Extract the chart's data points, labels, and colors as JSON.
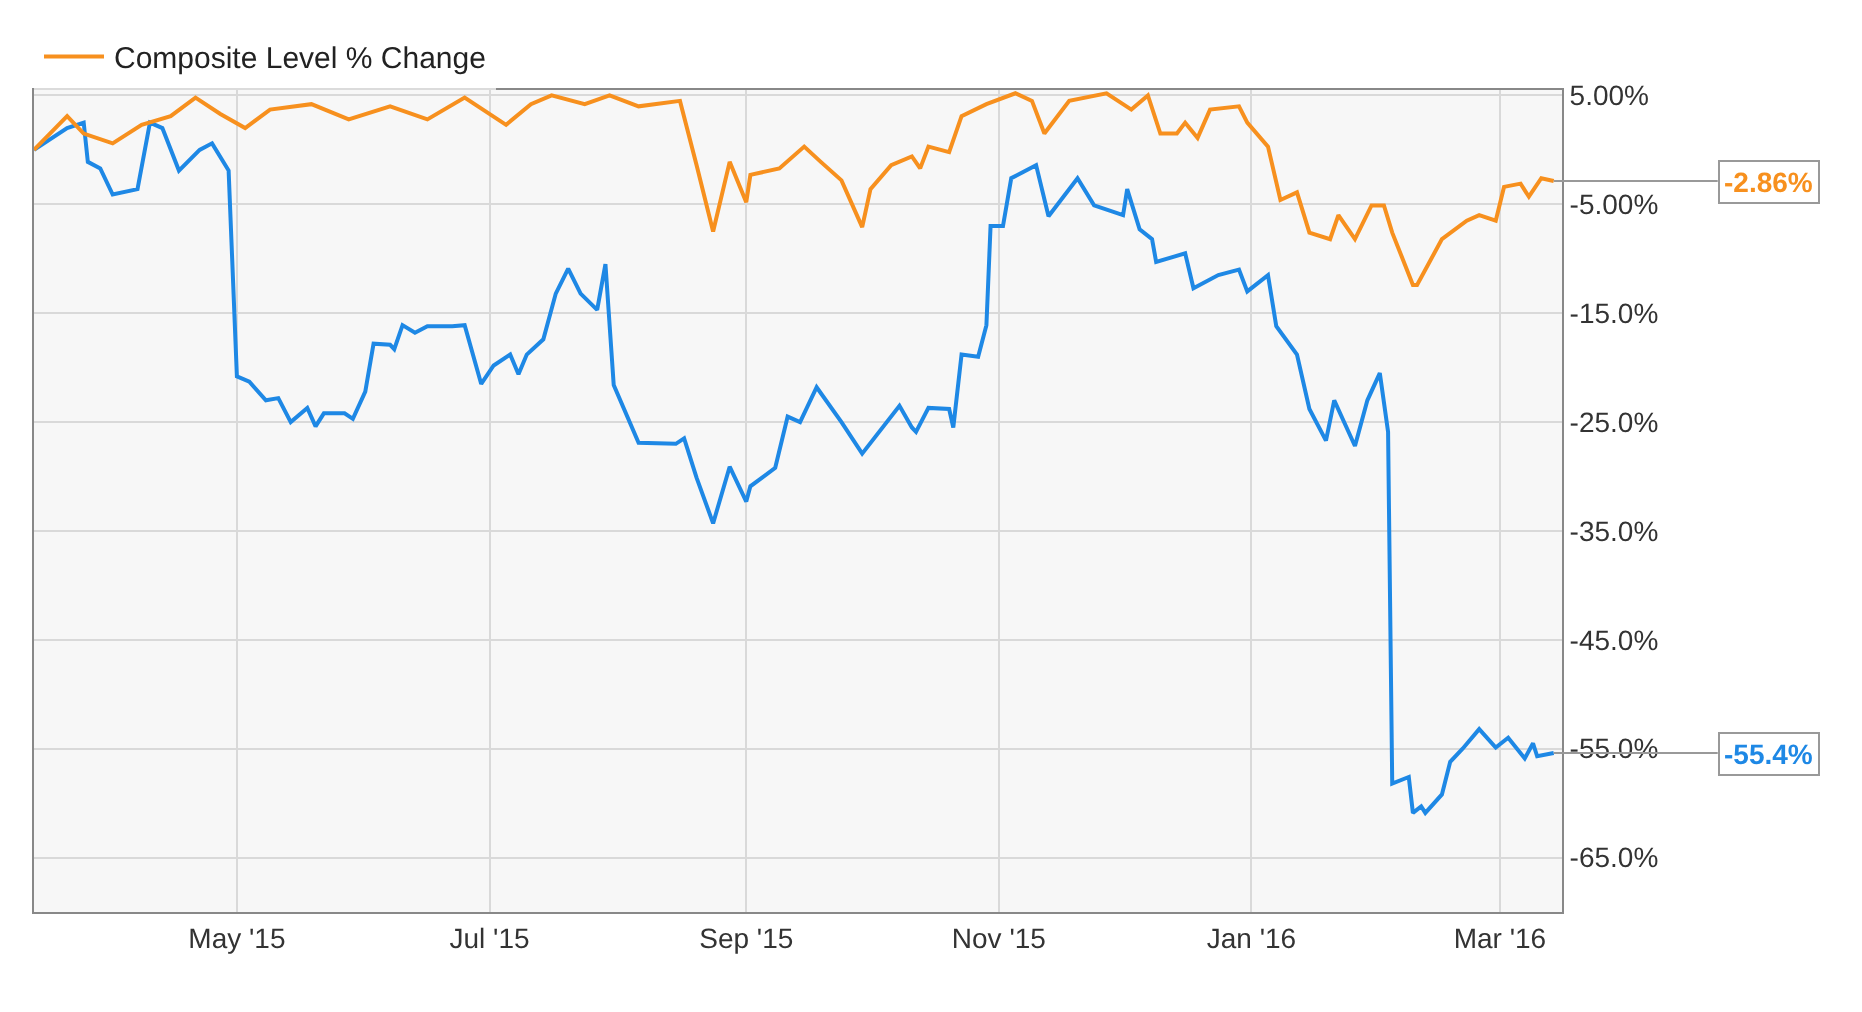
{
  "chart_data": {
    "type": "line",
    "xlim": [
      "2015-03-13",
      "2016-03-16"
    ],
    "xticks": [
      {
        "value": "2015-05-01",
        "label": "May '15"
      },
      {
        "value": "2015-07-01",
        "label": "Jul '15"
      },
      {
        "value": "2015-09-01",
        "label": "Sep '15"
      },
      {
        "value": "2015-11-01",
        "label": "Nov '15"
      },
      {
        "value": "2016-01-01",
        "label": "Jan '16"
      },
      {
        "value": "2016-03-01",
        "label": "Mar '16"
      }
    ],
    "ylim": [
      -70,
      5.5
    ],
    "yticks": [
      {
        "value": 5,
        "label": "5.00%"
      },
      {
        "value": -5,
        "label": "-5.00%"
      },
      {
        "value": -15,
        "label": "-15.0%"
      },
      {
        "value": -25,
        "label": "-25.0%"
      },
      {
        "value": -35,
        "label": "-35.0%"
      },
      {
        "value": -45,
        "label": "-45.0%"
      },
      {
        "value": -55,
        "label": "-55.0%"
      },
      {
        "value": -65,
        "label": "-65.0%"
      }
    ],
    "grid": true,
    "legend": "top left",
    "series": [
      {
        "color": "#1e88e5",
        "x": [
          "2015-03-13",
          "2015-03-21",
          "2015-03-25",
          "2015-03-26",
          "2015-03-29",
          "2015-04-01",
          "2015-04-07",
          "2015-04-10",
          "2015-04-13",
          "2015-04-17",
          "2015-04-22",
          "2015-04-25",
          "2015-04-29",
          "2015-05-01",
          "2015-05-04",
          "2015-05-08",
          "2015-05-11",
          "2015-05-14",
          "2015-05-18",
          "2015-05-20",
          "2015-05-22",
          "2015-05-27",
          "2015-05-29",
          "2015-06-01",
          "2015-06-03",
          "2015-06-07",
          "2015-06-08",
          "2015-06-10",
          "2015-06-13",
          "2015-06-16",
          "2015-06-22",
          "2015-06-25",
          "2015-06-29",
          "2015-07-02",
          "2015-07-06",
          "2015-07-08",
          "2015-07-10",
          "2015-07-14",
          "2015-07-17",
          "2015-07-20",
          "2015-07-23",
          "2015-07-27",
          "2015-07-29",
          "2015-07-31",
          "2015-08-06",
          "2015-08-15",
          "2015-08-17",
          "2015-08-20",
          "2015-08-24",
          "2015-08-28",
          "2015-09-01",
          "2015-09-02",
          "2015-09-08",
          "2015-09-11",
          "2015-09-14",
          "2015-09-18",
          "2015-09-24",
          "2015-09-29",
          "2015-10-08",
          "2015-10-11",
          "2015-10-12",
          "2015-10-15",
          "2015-10-20",
          "2015-10-21",
          "2015-10-23",
          "2015-10-27",
          "2015-10-29",
          "2015-10-30",
          "2015-11-02",
          "2015-11-04",
          "2015-11-10",
          "2015-11-13",
          "2015-11-20",
          "2015-11-24",
          "2015-12-01",
          "2015-12-02",
          "2015-12-05",
          "2015-12-08",
          "2015-12-09",
          "2015-12-16",
          "2015-12-18",
          "2015-12-24",
          "2015-12-29",
          "2015-12-31",
          "2016-01-05",
          "2016-01-07",
          "2016-01-12",
          "2016-01-15",
          "2016-01-19",
          "2016-01-21",
          "2016-01-26",
          "2016-01-29",
          "2016-02-01",
          "2016-02-03",
          "2016-02-04",
          "2016-02-08",
          "2016-02-09",
          "2016-02-11",
          "2016-02-12",
          "2016-02-16",
          "2016-02-18",
          "2016-02-21",
          "2016-02-25",
          "2016-02-29",
          "2016-03-03",
          "2016-03-07",
          "2016-03-09",
          "2016-03-10",
          "2016-03-14"
        ],
        "values": [
          0.0,
          2.0,
          2.5,
          -1.1,
          -1.7,
          -4.1,
          -3.6,
          2.5,
          2.0,
          -1.9,
          0.0,
          0.6,
          -1.9,
          -20.8,
          -21.3,
          -23.0,
          -22.8,
          -25.0,
          -23.7,
          -25.4,
          -24.2,
          -24.2,
          -24.7,
          -22.2,
          -17.8,
          -17.9,
          -18.3,
          -16.1,
          -16.8,
          -16.2,
          -16.2,
          -16.1,
          -21.5,
          -19.8,
          -18.8,
          -20.6,
          -18.8,
          -17.4,
          -13.2,
          -10.9,
          -13.2,
          -14.7,
          -10.5,
          -21.6,
          -26.9,
          -27.0,
          -26.5,
          -30.1,
          -34.3,
          -29.1,
          -32.3,
          -30.9,
          -29.2,
          -24.5,
          -25.0,
          -21.8,
          -25.0,
          -27.9,
          -23.5,
          -25.5,
          -25.9,
          -23.7,
          -23.8,
          -25.5,
          -18.8,
          -19.0,
          -16.1,
          -7.0,
          -7.0,
          -2.6,
          -1.4,
          -6.1,
          -2.6,
          -5.1,
          -6.0,
          -3.6,
          -7.3,
          -8.2,
          -10.3,
          -9.5,
          -12.7,
          -11.5,
          -11.0,
          -13.0,
          -11.5,
          -16.2,
          -18.8,
          -23.8,
          -26.7,
          -23.0,
          -27.2,
          -23.0,
          -20.5,
          -25.9,
          -58.2,
          -57.6,
          -60.9,
          -60.3,
          -60.9,
          -59.2,
          -56.2,
          -55.0,
          -53.2,
          -54.9,
          -54.0,
          -55.9,
          -54.5,
          -55.7,
          -55.4
        ],
        "value_labels": [
          null,
          null,
          null,
          null,
          null,
          null,
          null,
          null,
          null,
          null,
          null,
          null,
          null,
          null,
          null,
          null,
          null,
          null,
          null,
          null,
          null,
          null,
          null,
          null,
          null,
          null,
          null,
          null,
          null,
          null,
          null,
          null,
          null,
          null,
          null,
          null,
          null,
          null,
          null,
          null,
          null,
          null,
          null,
          null,
          null,
          null,
          null,
          null,
          null,
          null,
          null,
          null,
          null,
          null,
          null,
          null,
          null,
          null,
          null,
          null,
          null,
          null,
          null,
          null,
          null,
          null,
          null,
          null,
          null,
          null,
          null,
          null,
          null,
          null,
          null,
          null,
          null,
          null,
          null,
          null,
          null,
          null,
          null,
          null,
          null,
          null,
          null,
          null,
          null,
          null,
          null,
          null,
          null,
          null,
          null,
          null,
          null,
          null,
          null,
          null,
          null,
          null,
          null,
          null,
          null,
          null,
          null,
          null,
          "-55.4%"
        ]
      },
      {
        "name": "Composite Level % Change",
        "color": "#f7901e",
        "x": [
          "2015-03-13",
          "2015-03-21",
          "2015-03-25",
          "2015-04-01",
          "2015-04-08",
          "2015-04-15",
          "2015-04-21",
          "2015-04-27",
          "2015-05-03",
          "2015-05-09",
          "2015-05-19",
          "2015-05-28",
          "2015-06-07",
          "2015-06-16",
          "2015-06-25",
          "2015-07-05",
          "2015-07-11",
          "2015-07-16",
          "2015-07-24",
          "2015-07-30",
          "2015-08-06",
          "2015-08-16",
          "2015-08-20",
          "2015-08-24",
          "2015-08-28",
          "2015-09-01",
          "2015-09-02",
          "2015-09-09",
          "2015-09-15",
          "2015-09-19",
          "2015-09-24",
          "2015-09-29",
          "2015-10-01",
          "2015-10-06",
          "2015-10-11",
          "2015-10-13",
          "2015-10-15",
          "2015-10-20",
          "2015-10-23",
          "2015-10-29",
          "2015-11-05",
          "2015-11-09",
          "2015-11-12",
          "2015-11-18",
          "2015-11-27",
          "2015-12-03",
          "2015-12-07",
          "2015-12-10",
          "2015-12-14",
          "2015-12-16",
          "2015-12-19",
          "2015-12-22",
          "2015-12-29",
          "2015-12-31",
          "2016-01-05",
          "2016-01-08",
          "2016-01-12",
          "2016-01-15",
          "2016-01-20",
          "2016-01-22",
          "2016-01-26",
          "2016-01-30",
          "2016-02-02",
          "2016-02-04",
          "2016-02-09",
          "2016-02-10",
          "2016-02-16",
          "2016-02-22",
          "2016-02-25",
          "2016-02-29",
          "2016-03-02",
          "2016-03-06",
          "2016-03-08",
          "2016-03-11",
          "2016-03-14"
        ],
        "values": [
          0.0,
          3.1,
          1.5,
          0.6,
          2.3,
          3.1,
          4.8,
          3.3,
          2.0,
          3.7,
          4.2,
          2.8,
          4.0,
          2.8,
          4.8,
          2.3,
          4.2,
          5.0,
          4.2,
          5.0,
          4.0,
          4.5,
          -1.4,
          -7.5,
          -1.1,
          -4.8,
          -2.3,
          -1.7,
          0.3,
          -1.1,
          -2.8,
          -7.1,
          -3.6,
          -1.4,
          -0.6,
          -1.7,
          0.3,
          -0.2,
          3.1,
          4.2,
          5.2,
          4.5,
          1.5,
          4.5,
          5.2,
          3.7,
          5.0,
          1.5,
          1.5,
          2.5,
          1.1,
          3.7,
          4.0,
          2.5,
          0.3,
          -4.6,
          -3.9,
          -7.6,
          -8.2,
          -6.0,
          -8.2,
          -5.1,
          -5.1,
          -7.6,
          -12.4,
          -12.4,
          -8.2,
          -6.5,
          -6.0,
          -6.5,
          -3.4,
          -3.1,
          -4.3,
          -2.6,
          -2.86
        ],
        "value_labels": [
          null,
          null,
          null,
          null,
          null,
          null,
          null,
          null,
          null,
          null,
          null,
          null,
          null,
          null,
          null,
          null,
          null,
          null,
          null,
          null,
          null,
          null,
          null,
          null,
          null,
          null,
          null,
          null,
          null,
          null,
          null,
          null,
          null,
          null,
          null,
          null,
          null,
          null,
          null,
          null,
          null,
          null,
          null,
          null,
          null,
          null,
          null,
          null,
          null,
          null,
          null,
          null,
          null,
          null,
          null,
          null,
          null,
          null,
          null,
          null,
          null,
          null,
          null,
          null,
          null,
          null,
          null,
          null,
          null,
          null,
          null,
          null,
          null,
          null,
          "-2.86%"
        ]
      }
    ]
  }
}
